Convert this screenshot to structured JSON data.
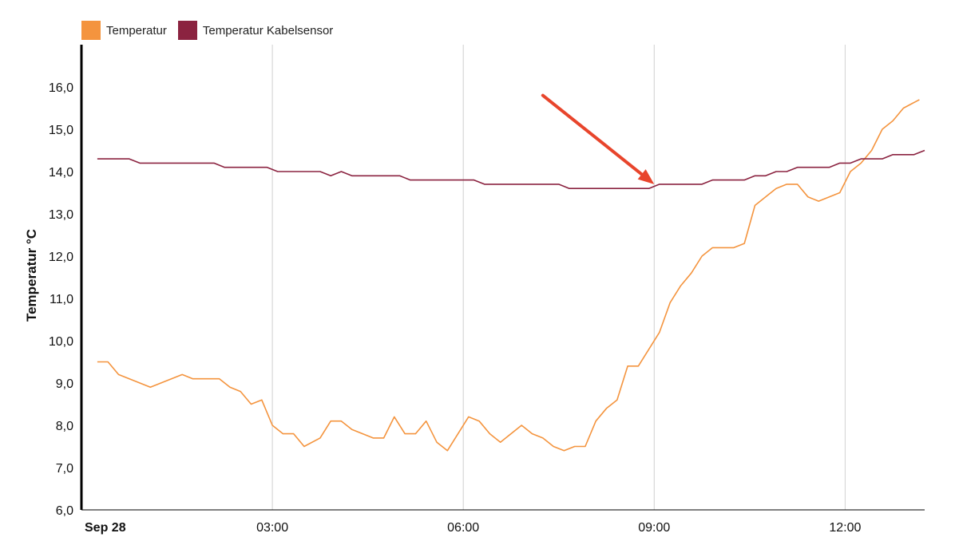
{
  "chart_data": {
    "type": "line",
    "ylabel": "Temperatur °C",
    "ylim": [
      6,
      17
    ],
    "y_ticks": [
      {
        "value": 6,
        "label": "6,0"
      },
      {
        "value": 7,
        "label": "7,0"
      },
      {
        "value": 8,
        "label": "8,0"
      },
      {
        "value": 9,
        "label": "9,0"
      },
      {
        "value": 10,
        "label": "10,0"
      },
      {
        "value": 11,
        "label": "11,0"
      },
      {
        "value": 12,
        "label": "12,0"
      },
      {
        "value": 13,
        "label": "13,0"
      },
      {
        "value": 14,
        "label": "14,0"
      },
      {
        "value": 15,
        "label": "15,0"
      },
      {
        "value": 16,
        "label": "16,0"
      }
    ],
    "xlim": [
      "2021-09-28T00:00",
      "2021-09-28T13:15"
    ],
    "x_ticks": [
      {
        "value": "2021-09-28T00:00",
        "label": "Sep 28",
        "bold": true
      },
      {
        "value": "2021-09-28T03:00",
        "label": "03:00",
        "bold": false
      },
      {
        "value": "2021-09-28T06:00",
        "label": "06:00",
        "bold": false
      },
      {
        "value": "2021-09-28T09:00",
        "label": "09:00",
        "bold": false
      },
      {
        "value": "2021-09-28T12:00",
        "label": "12:00",
        "bold": false
      }
    ],
    "grid": "vertical",
    "legend_position": "top-left",
    "annotation": {
      "type": "arrow",
      "color": "#e8452c",
      "from": [
        "2021-09-28T07:15",
        15.8
      ],
      "to": [
        "2021-09-28T09:00",
        13.7
      ]
    },
    "series": [
      {
        "name": "Temperatur",
        "color": "#f4943e",
        "points": [
          [
            "2021-09-28T00:15",
            9.5
          ],
          [
            "2021-09-28T00:25",
            9.5
          ],
          [
            "2021-09-28T00:35",
            9.2
          ],
          [
            "2021-09-28T01:05",
            8.9
          ],
          [
            "2021-09-28T01:35",
            9.2
          ],
          [
            "2021-09-28T01:45",
            9.1
          ],
          [
            "2021-09-28T02:10",
            9.1
          ],
          [
            "2021-09-28T02:20",
            8.9
          ],
          [
            "2021-09-28T02:30",
            8.8
          ],
          [
            "2021-09-28T02:40",
            8.5
          ],
          [
            "2021-09-28T02:50",
            8.6
          ],
          [
            "2021-09-28T03:00",
            8.0
          ],
          [
            "2021-09-28T03:10",
            7.8
          ],
          [
            "2021-09-28T03:20",
            7.8
          ],
          [
            "2021-09-28T03:30",
            7.5
          ],
          [
            "2021-09-28T03:45",
            7.7
          ],
          [
            "2021-09-28T03:55",
            8.1
          ],
          [
            "2021-09-28T04:05",
            8.1
          ],
          [
            "2021-09-28T04:15",
            7.9
          ],
          [
            "2021-09-28T04:35",
            7.7
          ],
          [
            "2021-09-28T04:45",
            7.7
          ],
          [
            "2021-09-28T04:55",
            8.2
          ],
          [
            "2021-09-28T05:05",
            7.8
          ],
          [
            "2021-09-28T05:15",
            7.8
          ],
          [
            "2021-09-28T05:25",
            8.1
          ],
          [
            "2021-09-28T05:35",
            7.6
          ],
          [
            "2021-09-28T05:45",
            7.4
          ],
          [
            "2021-09-28T06:05",
            8.2
          ],
          [
            "2021-09-28T06:15",
            8.1
          ],
          [
            "2021-09-28T06:25",
            7.8
          ],
          [
            "2021-09-28T06:35",
            7.6
          ],
          [
            "2021-09-28T06:55",
            8.0
          ],
          [
            "2021-09-28T07:05",
            7.8
          ],
          [
            "2021-09-28T07:15",
            7.7
          ],
          [
            "2021-09-28T07:25",
            7.5
          ],
          [
            "2021-09-28T07:35",
            7.4
          ],
          [
            "2021-09-28T07:45",
            7.5
          ],
          [
            "2021-09-28T07:55",
            7.5
          ],
          [
            "2021-09-28T08:05",
            8.1
          ],
          [
            "2021-09-28T08:15",
            8.4
          ],
          [
            "2021-09-28T08:25",
            8.6
          ],
          [
            "2021-09-28T08:35",
            9.4
          ],
          [
            "2021-09-28T08:45",
            9.4
          ],
          [
            "2021-09-28T09:05",
            10.2
          ],
          [
            "2021-09-28T09:15",
            10.9
          ],
          [
            "2021-09-28T09:25",
            11.3
          ],
          [
            "2021-09-28T09:35",
            11.6
          ],
          [
            "2021-09-28T09:45",
            12.0
          ],
          [
            "2021-09-28T09:55",
            12.2
          ],
          [
            "2021-09-28T10:15",
            12.2
          ],
          [
            "2021-09-28T10:25",
            12.3
          ],
          [
            "2021-09-28T10:35",
            13.2
          ],
          [
            "2021-09-28T10:45",
            13.4
          ],
          [
            "2021-09-28T10:55",
            13.6
          ],
          [
            "2021-09-28T11:05",
            13.7
          ],
          [
            "2021-09-28T11:15",
            13.7
          ],
          [
            "2021-09-28T11:25",
            13.4
          ],
          [
            "2021-09-28T11:35",
            13.3
          ],
          [
            "2021-09-28T11:55",
            13.5
          ],
          [
            "2021-09-28T12:05",
            14.0
          ],
          [
            "2021-09-28T12:15",
            14.2
          ],
          [
            "2021-09-28T12:25",
            14.5
          ],
          [
            "2021-09-28T12:35",
            15.0
          ],
          [
            "2021-09-28T12:45",
            15.2
          ],
          [
            "2021-09-28T12:55",
            15.5
          ],
          [
            "2021-09-28T13:10",
            15.7
          ]
        ]
      },
      {
        "name": "Temperatur Kabelsensor",
        "color": "#8b2340",
        "points": [
          [
            "2021-09-28T00:15",
            14.3
          ],
          [
            "2021-09-28T00:45",
            14.3
          ],
          [
            "2021-09-28T00:55",
            14.2
          ],
          [
            "2021-09-28T02:05",
            14.2
          ],
          [
            "2021-09-28T02:15",
            14.1
          ],
          [
            "2021-09-28T02:55",
            14.1
          ],
          [
            "2021-09-28T03:05",
            14.0
          ],
          [
            "2021-09-28T03:45",
            14.0
          ],
          [
            "2021-09-28T03:55",
            13.9
          ],
          [
            "2021-09-28T04:05",
            14.0
          ],
          [
            "2021-09-28T04:15",
            13.9
          ],
          [
            "2021-09-28T05:00",
            13.9
          ],
          [
            "2021-09-28T05:10",
            13.8
          ],
          [
            "2021-09-28T06:10",
            13.8
          ],
          [
            "2021-09-28T06:20",
            13.7
          ],
          [
            "2021-09-28T07:30",
            13.7
          ],
          [
            "2021-09-28T07:40",
            13.6
          ],
          [
            "2021-09-28T08:55",
            13.6
          ],
          [
            "2021-09-28T09:05",
            13.7
          ],
          [
            "2021-09-28T09:45",
            13.7
          ],
          [
            "2021-09-28T09:55",
            13.8
          ],
          [
            "2021-09-28T10:25",
            13.8
          ],
          [
            "2021-09-28T10:35",
            13.9
          ],
          [
            "2021-09-28T10:45",
            13.9
          ],
          [
            "2021-09-28T10:55",
            14.0
          ],
          [
            "2021-09-28T11:05",
            14.0
          ],
          [
            "2021-09-28T11:15",
            14.1
          ],
          [
            "2021-09-28T11:45",
            14.1
          ],
          [
            "2021-09-28T11:55",
            14.2
          ],
          [
            "2021-09-28T12:05",
            14.2
          ],
          [
            "2021-09-28T12:15",
            14.3
          ],
          [
            "2021-09-28T12:35",
            14.3
          ],
          [
            "2021-09-28T12:45",
            14.4
          ],
          [
            "2021-09-28T13:05",
            14.4
          ],
          [
            "2021-09-28T13:15",
            14.5
          ]
        ]
      }
    ]
  }
}
